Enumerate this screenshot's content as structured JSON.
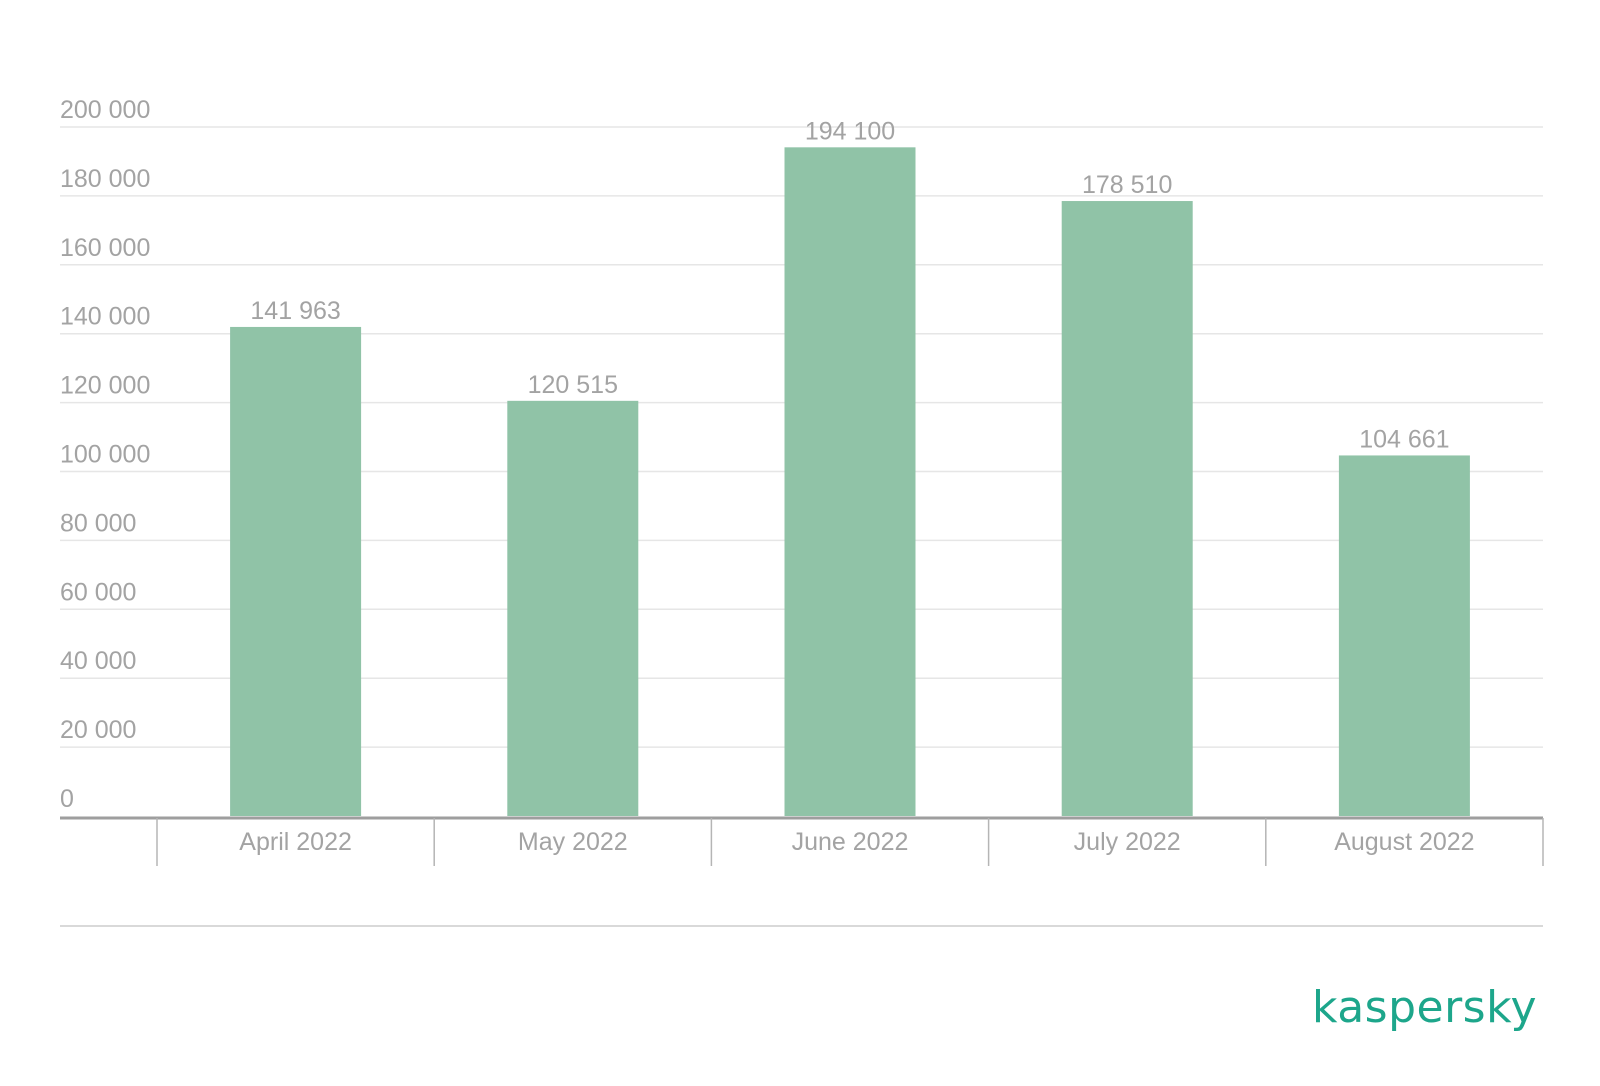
{
  "chart_data": {
    "type": "bar",
    "categories": [
      "April 2022",
      "May 2022",
      "June 2022",
      "July 2022",
      "August 2022"
    ],
    "values": [
      141963,
      120515,
      194100,
      178510,
      104661
    ],
    "data_labels": [
      "141 963",
      "120 515",
      "194 100",
      "178 510",
      "104 661"
    ],
    "ylim": [
      0,
      200000
    ],
    "yticks": [
      0,
      20000,
      40000,
      60000,
      80000,
      100000,
      120000,
      140000,
      160000,
      180000,
      200000
    ],
    "ytick_labels": [
      "0",
      "20 000",
      "40 000",
      "60 000",
      "80 000",
      "100 000",
      "120 000",
      "140 000",
      "160 000",
      "180 000",
      "200 000"
    ],
    "grid": true,
    "legend": "none",
    "colors": {
      "bar": "#90c3a7",
      "text": "#a3a3a3",
      "brand": "#1da68b"
    }
  },
  "brand": {
    "logo_text": "kaspersky"
  }
}
